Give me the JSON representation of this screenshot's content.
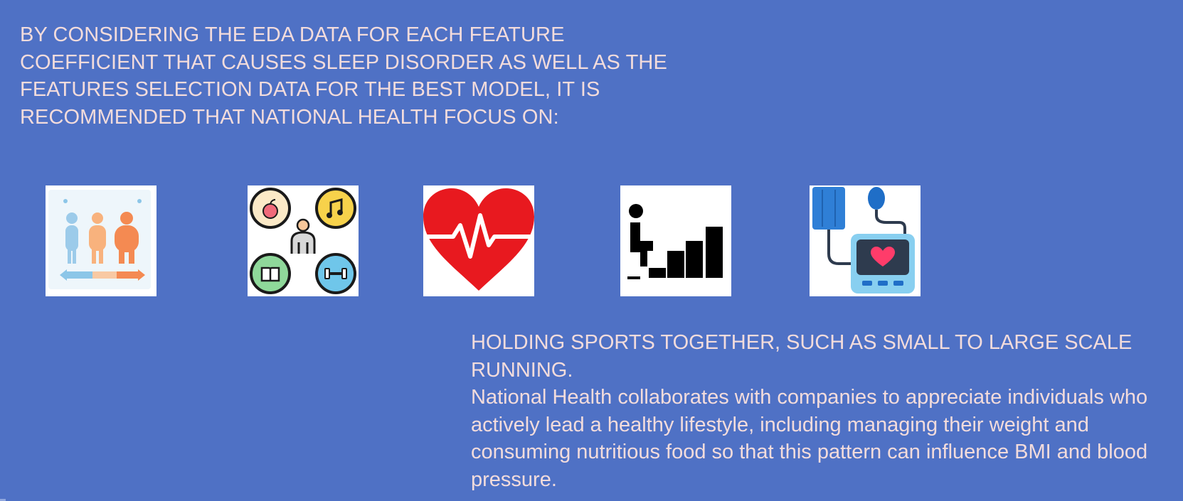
{
  "intro": {
    "text": "BY CONSIDERING THE EDA DATA FOR EACH FEATURE COEFFICIENT THAT CAUSES SLEEP DISORDER AS WELL AS THE FEATURES SELECTION DATA FOR THE BEST MODEL, IT IS RECOMMENDED THAT NATIONAL HEALTH FOCUS ON:"
  },
  "icons": [
    {
      "name": "bmi-scale-icon"
    },
    {
      "name": "lifestyle-icon"
    },
    {
      "name": "heart-rate-icon"
    },
    {
      "name": "physical-activity-steps-icon"
    },
    {
      "name": "blood-pressure-monitor-icon"
    }
  ],
  "recommendation": {
    "heading": "HOLDING SPORTS TOGETHER, SUCH AS SMALL TO LARGE SCALE RUNNING.",
    "body": "National Health collaborates with companies to appreciate individuals who actively lead a healthy lifestyle, including managing their weight and consuming nutritious food so that this pattern can influence BMI and blood pressure."
  },
  "colors": {
    "background": "#4f71c5",
    "text": "#f3dcdc"
  }
}
